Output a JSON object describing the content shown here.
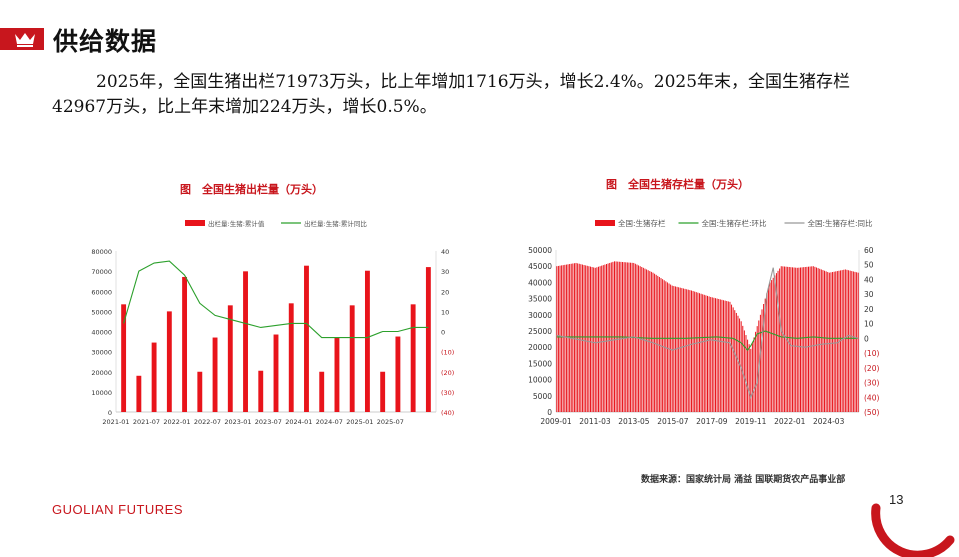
{
  "header": {
    "title": "供给数据"
  },
  "body_text": "2025年，全国生猪出栏71973万头，比上年增加1716万头，增长2.4%。2025年末，全国生猪存栏42967万头，比上年末增加224万头，增长0.5%。",
  "colors": {
    "brand": "#c8161d",
    "bar": "#e8141b",
    "green": "#2ca02c",
    "grey": "#999999"
  },
  "chart_data": [
    {
      "type": "bar",
      "title": "图　全国生猪出栏量（万头）",
      "legend": [
        "出栏量:生猪:累计值",
        "出栏量:生猪:累计同比"
      ],
      "x_ticks": [
        "2021-01",
        "2021-07",
        "2022-01",
        "2022-07",
        "2023-01",
        "2023-07",
        "2024-01",
        "2024-07",
        "2025-01",
        "2025-07"
      ],
      "y_left": {
        "range": [
          0,
          80000
        ],
        "ticks": [
          "0",
          "10000",
          "20000",
          "30000",
          "40000",
          "50000",
          "60000",
          "70000",
          "80000"
        ]
      },
      "y_right": {
        "range": [
          -40,
          40
        ],
        "ticks": [
          "(40)",
          "(30)",
          "(20)",
          "(10)",
          "0",
          "10",
          "20",
          "30",
          "40"
        ]
      },
      "series": [
        {
          "name": "出栏量:生猪:累计值",
          "kind": "bar",
          "values": [
            53500,
            18000,
            34500,
            50000,
            67100,
            20000,
            37000,
            53000,
            69900,
            20500,
            38500,
            54000,
            72700,
            20000,
            37000,
            53000,
            70200,
            20000,
            37500,
            53500,
            72000
          ]
        },
        {
          "name": "出栏量:生猪:累计同比",
          "kind": "line",
          "values": [
            4,
            30,
            34,
            35,
            28,
            14,
            8,
            6,
            4,
            2,
            3,
            4,
            4,
            -3,
            -3,
            -3,
            -3,
            0,
            0,
            2,
            2
          ]
        }
      ]
    },
    {
      "type": "bar",
      "title": "图　全国生猪存栏量（万头）",
      "legend": [
        "全国:生猪存栏",
        "全国:生猪存栏:环比",
        "全国:生猪存栏:同比"
      ],
      "x_ticks": [
        "2009-01",
        "2011-03",
        "2013-05",
        "2015-07",
        "2017-09",
        "2019-11",
        "2022-01",
        "2024-03"
      ],
      "y_left": {
        "range": [
          0,
          50000
        ],
        "ticks": [
          "0",
          "5000",
          "10000",
          "15000",
          "20000",
          "25000",
          "30000",
          "35000",
          "40000",
          "45000",
          "50000"
        ]
      },
      "y_right": {
        "range": [
          -50,
          60
        ],
        "ticks": [
          "(50)",
          "(40)",
          "(30)",
          "(20)",
          "(10)",
          "0",
          "10",
          "20",
          "30",
          "40",
          "50",
          "60"
        ]
      },
      "series": [
        {
          "name": "全国:生猪存栏",
          "kind": "bar",
          "anchors": [
            [
              0,
              45000
            ],
            [
              12,
              46000
            ],
            [
              24,
              44500
            ],
            [
              36,
              46500
            ],
            [
              48,
              46000
            ],
            [
              60,
              43000
            ],
            [
              72,
              39000
            ],
            [
              84,
              37500
            ],
            [
              96,
              35500
            ],
            [
              108,
              34000
            ],
            [
              115,
              28000
            ],
            [
              121,
              19500
            ],
            [
              127,
              30000
            ],
            [
              133,
              40000
            ],
            [
              140,
              45000
            ],
            [
              150,
              44500
            ],
            [
              160,
              45000
            ],
            [
              170,
              43000
            ],
            [
              180,
              44000
            ],
            [
              188,
              43000
            ]
          ]
        },
        {
          "name": "全国:生猪存栏:环比",
          "kind": "line",
          "anchors": [
            [
              0,
              1
            ],
            [
              20,
              1
            ],
            [
              40,
              1
            ],
            [
              60,
              0
            ],
            [
              80,
              0
            ],
            [
              100,
              1
            ],
            [
              110,
              0
            ],
            [
              115,
              -3
            ],
            [
              119,
              -8
            ],
            [
              121,
              -5
            ],
            [
              125,
              3
            ],
            [
              130,
              5
            ],
            [
              135,
              3
            ],
            [
              140,
              1
            ],
            [
              150,
              0
            ],
            [
              160,
              1
            ],
            [
              170,
              0
            ],
            [
              180,
              0
            ],
            [
              188,
              0
            ]
          ]
        },
        {
          "name": "全国:生猪存栏:同比",
          "kind": "line",
          "anchors": [
            [
              0,
              2
            ],
            [
              24,
              -3
            ],
            [
              48,
              1
            ],
            [
              60,
              -3
            ],
            [
              72,
              -8
            ],
            [
              84,
              -4
            ],
            [
              96,
              -1
            ],
            [
              108,
              -3
            ],
            [
              115,
              -20
            ],
            [
              121,
              -40
            ],
            [
              125,
              -30
            ],
            [
              131,
              30
            ],
            [
              135,
              48
            ],
            [
              140,
              5
            ],
            [
              146,
              -5
            ],
            [
              155,
              -6
            ],
            [
              165,
              -4
            ],
            [
              175,
              -3
            ],
            [
              182,
              2
            ],
            [
              188,
              0
            ]
          ]
        }
      ]
    }
  ],
  "source": "数据来源：国家统计局  涌益  国联期货农产品事业部",
  "footer": {
    "brand": "GUOLIAN FUTURES",
    "page": "13"
  }
}
